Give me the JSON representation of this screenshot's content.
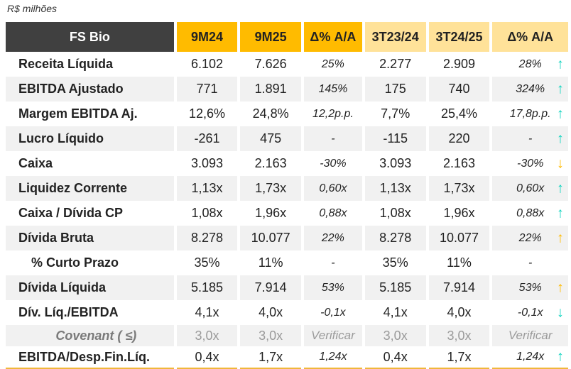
{
  "unit": "R$ milhões",
  "header": {
    "company": "FS Bio",
    "cols": [
      "9M24",
      "9M25",
      "Δ% A/A",
      "3T23/24",
      "3T24/25",
      "Δ% A/A"
    ]
  },
  "rows": [
    {
      "label": "Receita Líquida",
      "values": [
        "6.102",
        "7.626",
        "25%",
        "2.277",
        "2.909",
        "28%"
      ],
      "arrow": "up",
      "arrow_color": "#11d4bf"
    },
    {
      "label": "EBITDA Ajustado",
      "values": [
        "771",
        "1.891",
        "145%",
        "175",
        "740",
        "324%"
      ],
      "arrow": "up",
      "arrow_color": "#11d4bf"
    },
    {
      "label": "Margem EBITDA Aj.",
      "values": [
        "12,6%",
        "24,8%",
        "12,2p.p.",
        "7,7%",
        "25,4%",
        "17,8p.p."
      ],
      "arrow": "up",
      "arrow_color": "#11d4bf"
    },
    {
      "label": "Lucro Líquido",
      "values": [
        "-261",
        "475",
        "-",
        "-115",
        "220",
        "-"
      ],
      "arrow": "up",
      "arrow_color": "#11d4bf"
    },
    {
      "label": "Caixa",
      "values": [
        "3.093",
        "2.163",
        "-30%",
        "3.093",
        "2.163",
        "-30%"
      ],
      "arrow": "down",
      "arrow_color": "#ffbb00"
    },
    {
      "label": "Liquidez Corrente",
      "values": [
        "1,13x",
        "1,73x",
        "0,60x",
        "1,13x",
        "1,73x",
        "0,60x"
      ],
      "arrow": "up",
      "arrow_color": "#11d4bf"
    },
    {
      "label": "Caixa / Dívida CP",
      "values": [
        "1,08x",
        "1,96x",
        "0,88x",
        "1,08x",
        "1,96x",
        "0,88x"
      ],
      "arrow": "up",
      "arrow_color": "#11d4bf"
    },
    {
      "label": "Dívida Bruta",
      "values": [
        "8.278",
        "10.077",
        "22%",
        "8.278",
        "10.077",
        "22%"
      ],
      "arrow": "up",
      "arrow_color": "#ffbb00"
    },
    {
      "label": "% Curto Prazo",
      "values": [
        "35%",
        "11%",
        "-",
        "35%",
        "11%",
        "-"
      ],
      "arrow": null
    },
    {
      "label": "Dívida Líquida",
      "values": [
        "5.185",
        "7.914",
        "53%",
        "5.185",
        "7.914",
        "53%"
      ],
      "arrow": "up",
      "arrow_color": "#ffbb00"
    },
    {
      "label": "Dív. Líq./EBITDA",
      "values": [
        "4,1x",
        "4,0x",
        "-0,1x",
        "4,1x",
        "4,0x",
        "-0,1x"
      ],
      "arrow": "down",
      "arrow_color": "#11d4bf"
    },
    {
      "label": "Covenant ( ≤)",
      "values": [
        "3,0x",
        "3,0x",
        "Verificar",
        "3,0x",
        "3,0x",
        "Verificar"
      ],
      "arrow": null
    },
    {
      "label": "EBITDA/Desp.Fin.Líq.",
      "values": [
        "0,4x",
        "1,7x",
        "1,24x",
        "0,4x",
        "1,7x",
        "1,24x"
      ],
      "arrow": "up",
      "arrow_color": "#11d4bf"
    }
  ]
}
